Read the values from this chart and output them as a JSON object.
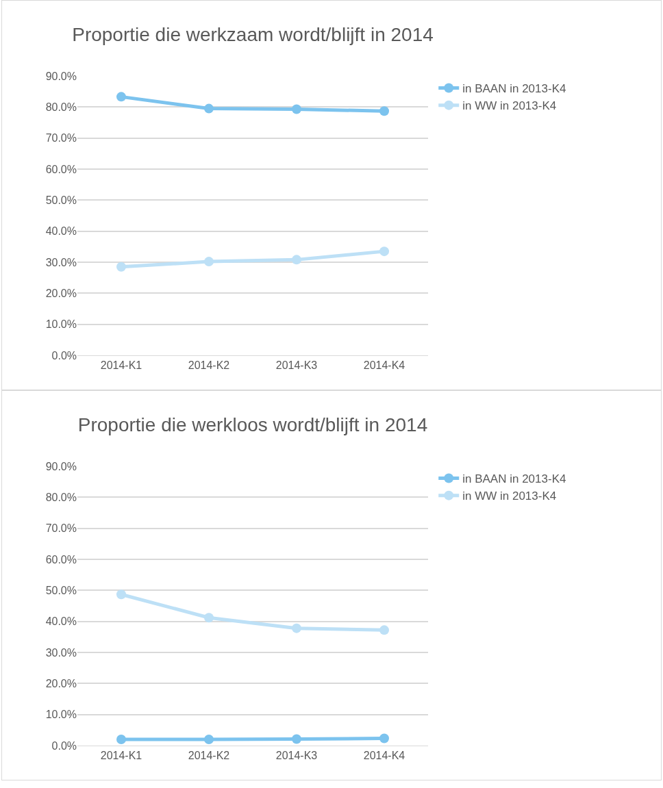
{
  "chart_data": [
    {
      "type": "line",
      "title": "Proportie die werkzaam wordt/blijft in 2014",
      "categories": [
        "2014-K1",
        "2014-K2",
        "2014-K3",
        "2014-K4"
      ],
      "series": [
        {
          "name": "in BAAN in 2013-K4",
          "color": "#7cc3ee",
          "values": [
            83.3,
            79.5,
            79.3,
            78.7
          ]
        },
        {
          "name": "in WW in 2013-K4",
          "color": "#bde0f6",
          "values": [
            28.5,
            30.2,
            30.8,
            33.5
          ]
        }
      ],
      "ylim": [
        0,
        90
      ],
      "yticks": [
        {
          "value": 0,
          "label": "0.0%"
        },
        {
          "value": 10,
          "label": "10.0%"
        },
        {
          "value": 20,
          "label": "20.0%"
        },
        {
          "value": 30,
          "label": "30.0%"
        },
        {
          "value": 40,
          "label": "40.0%"
        },
        {
          "value": 50,
          "label": "50.0%"
        },
        {
          "value": 60,
          "label": "60.0%"
        },
        {
          "value": 70,
          "label": "70.0%"
        },
        {
          "value": 80,
          "label": "80.0%"
        },
        {
          "value": 90,
          "label": "90.0%"
        }
      ],
      "grid": "y",
      "legend": "top right",
      "marker": "circle",
      "line_style": "solid"
    },
    {
      "type": "line",
      "title": "Proportie die werkloos wordt/blijft in 2014",
      "categories": [
        "2014-K1",
        "2014-K2",
        "2014-K3",
        "2014-K4"
      ],
      "series": [
        {
          "name": "in BAAN in 2013-K4",
          "color": "#7cc3ee",
          "values": [
            2.0,
            2.0,
            2.1,
            2.3
          ]
        },
        {
          "name": "in WW in 2013-K4",
          "color": "#bde0f6",
          "values": [
            48.7,
            41.2,
            37.8,
            37.2
          ]
        }
      ],
      "ylim": [
        0,
        90
      ],
      "yticks": [
        {
          "value": 0,
          "label": "0.0%"
        },
        {
          "value": 10,
          "label": "10.0%"
        },
        {
          "value": 20,
          "label": "20.0%"
        },
        {
          "value": 30,
          "label": "30.0%"
        },
        {
          "value": 40,
          "label": "40.0%"
        },
        {
          "value": 50,
          "label": "50.0%"
        },
        {
          "value": 60,
          "label": "60.0%"
        },
        {
          "value": 70,
          "label": "70.0%"
        },
        {
          "value": 80,
          "label": "80.0%"
        },
        {
          "value": 90,
          "label": "90.0%"
        }
      ],
      "grid": "y",
      "legend": "top right",
      "marker": "circle",
      "line_style": "solid"
    }
  ]
}
